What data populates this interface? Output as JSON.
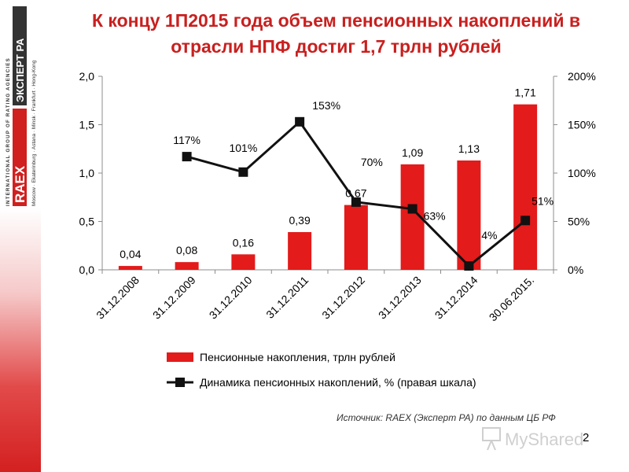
{
  "slide": {
    "title_line1": "К концу 1П2015 года объем пенсионных накоплений в",
    "title_line2": "отрасли НПФ достиг 1,7 трлн рублей",
    "source": "Источник: RAEX (Эксперт РА) по данным ЦБ РФ",
    "page_number": "2"
  },
  "logo": {
    "brand": "RAEX",
    "brand_ru": "ЭКСПЕРТ РА",
    "tagline": "INTERNATIONAL GROUP OF RATING AGENCIES",
    "cities": "Moscow · Ekaterinburg · Astana · Minsk · Frankfurt · Hong-Kong",
    "colors": {
      "red": "#d0201f",
      "dark": "#333333"
    }
  },
  "watermark": {
    "text": "MyShared",
    "icon": "presentation-board-icon"
  },
  "chart_data": {
    "type": "bar",
    "categories": [
      "31.12.2008",
      "31.12.2009",
      "31.12.2010",
      "31.12.2011",
      "31.12.2012",
      "31.12.2013",
      "31.12.2014",
      "30.06.2015."
    ],
    "series": [
      {
        "name": "Пенсионные накопления, трлн рублей",
        "type": "bar",
        "axis": "left",
        "values": [
          0.04,
          0.08,
          0.16,
          0.39,
          0.67,
          1.09,
          1.13,
          1.71
        ],
        "labels": [
          "0,04",
          "0,08",
          "0,16",
          "0,39",
          "0,67",
          "1,09",
          "1,13",
          "1,71"
        ],
        "color": "#e31b1b"
      },
      {
        "name": "Динамика пенсионных накоплений, % (правая шкала)",
        "type": "line",
        "axis": "right",
        "values": [
          null,
          117,
          101,
          153,
          70,
          63,
          4,
          51
        ],
        "labels": [
          "",
          "117%",
          "101%",
          "153%",
          "70%",
          "63%",
          "4%",
          "51%"
        ],
        "color": "#111111"
      }
    ],
    "y_left": {
      "range": [
        0,
        2.0
      ],
      "ticks": [
        "0,0",
        "0,5",
        "1,0",
        "1,5",
        "2,0"
      ]
    },
    "y_right": {
      "range": [
        0,
        200
      ],
      "ticks": [
        "0%",
        "50%",
        "100%",
        "150%",
        "200%"
      ]
    },
    "grid": false,
    "legend_position": "bottom"
  }
}
